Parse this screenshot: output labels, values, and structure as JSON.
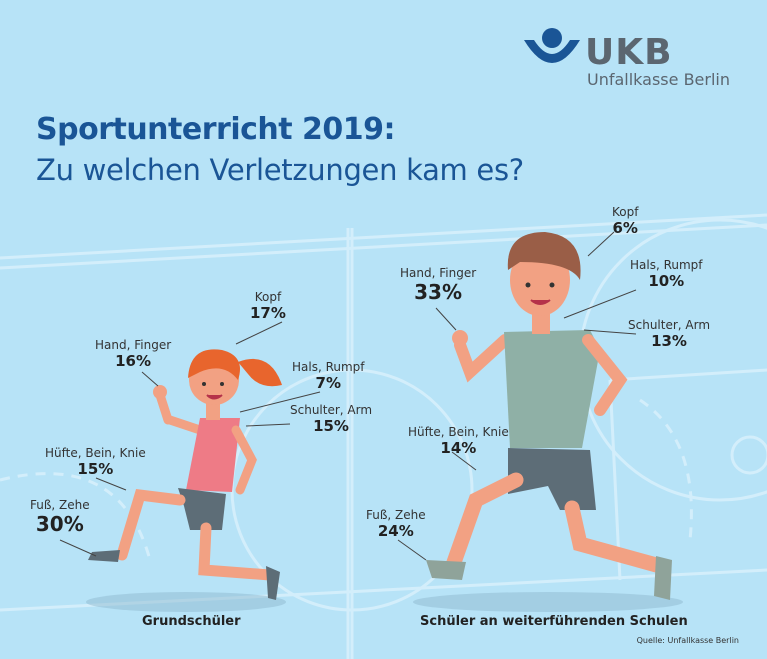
{
  "logo": {
    "name": "UKB",
    "subtitle": "Unfallkasse Berlin",
    "colors": {
      "blue": "#1a5596",
      "gray": "#5b6670"
    }
  },
  "title": {
    "line1": "Sportunterricht 2019:",
    "line2": "Zu welchen Verletzungen kam es?"
  },
  "groups": {
    "primary": {
      "caption": "Grundschüler"
    },
    "secondary": {
      "caption": "Schüler an weiterführenden Schulen"
    }
  },
  "source": "Quelle: Unfallkasse Berlin",
  "chart_data": {
    "type": "table",
    "unit": "%",
    "categories": [
      "Kopf",
      "Hand, Finger",
      "Hals, Rumpf",
      "Schulter, Arm",
      "Hüfte, Bein, Knie",
      "Fuß, Zehe"
    ],
    "series": [
      {
        "name": "Grundschüler",
        "values": [
          17,
          16,
          7,
          15,
          15,
          30
        ]
      },
      {
        "name": "Schüler an weiterführenden Schulen",
        "values": [
          6,
          33,
          10,
          13,
          14,
          24
        ]
      }
    ],
    "labels": {
      "primary": [
        "17%",
        "16%",
        "7%",
        "15%",
        "15%",
        "30%"
      ],
      "secondary": [
        "6%",
        "33%",
        "10%",
        "13%",
        "14%",
        "24%"
      ]
    }
  }
}
